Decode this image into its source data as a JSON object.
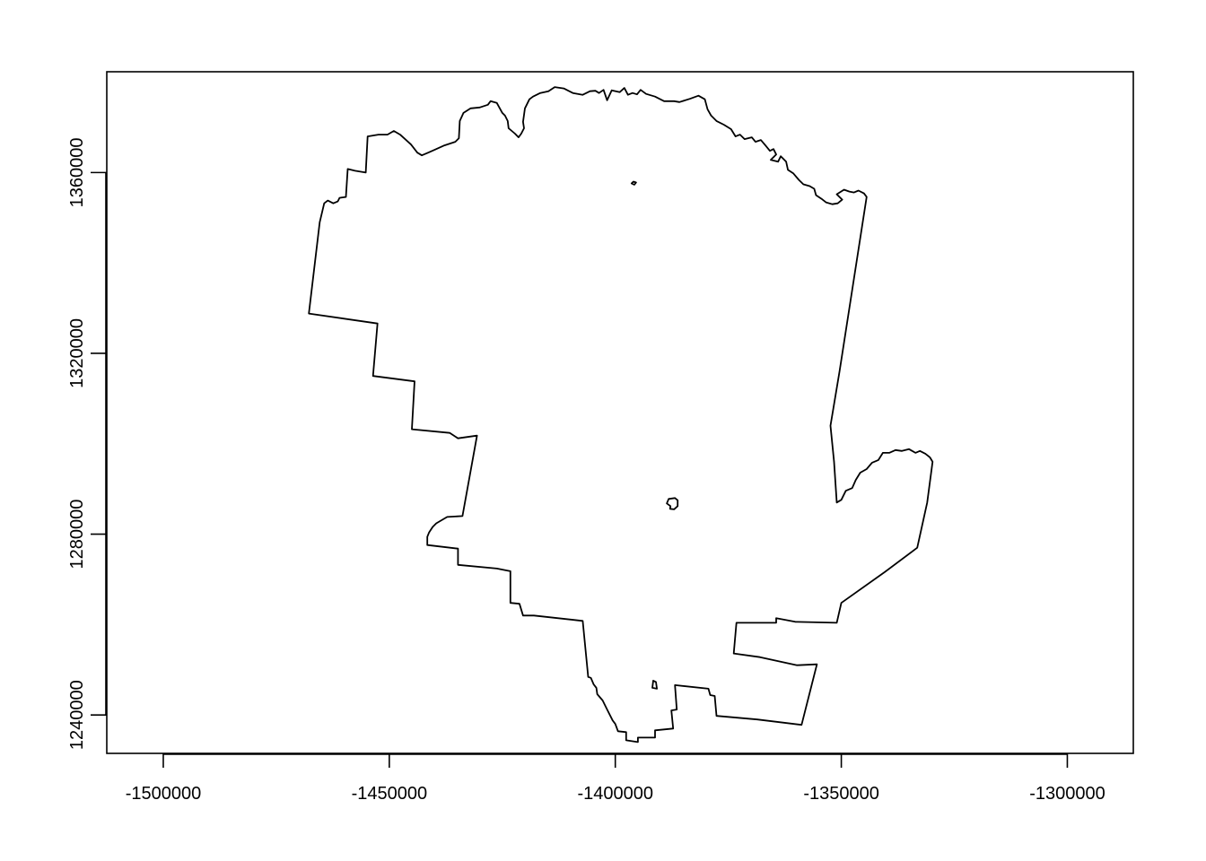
{
  "chart_data": {
    "type": "map",
    "title": "",
    "xlabel": "",
    "ylabel": "",
    "x_ticks": [
      -1500000,
      -1450000,
      -1400000,
      -1350000,
      -1300000
    ],
    "x_tick_labels": [
      "-1500000",
      "-1450000",
      "-1400000",
      "-1350000",
      "-1300000"
    ],
    "y_ticks": [
      1240000,
      1280000,
      1320000,
      1360000
    ],
    "y_tick_labels": [
      "1240000",
      "1280000",
      "1320000",
      "1360000"
    ],
    "xlim": [
      -1512500,
      -1285400
    ],
    "ylim": [
      1231500,
      1382300
    ],
    "grid": false,
    "stroke_color": "#000000",
    "outline": [
      [
        -1413400,
        1378900
      ],
      [
        -1411400,
        1378600
      ],
      [
        -1409400,
        1377600
      ],
      [
        -1407200,
        1377200
      ],
      [
        -1405600,
        1378000
      ],
      [
        -1404400,
        1378100
      ],
      [
        -1403600,
        1377600
      ],
      [
        -1402600,
        1378300
      ],
      [
        -1401800,
        1376000
      ],
      [
        -1400800,
        1378200
      ],
      [
        -1399000,
        1377800
      ],
      [
        -1398000,
        1378700
      ],
      [
        -1397200,
        1377200
      ],
      [
        -1396200,
        1377600
      ],
      [
        -1395200,
        1377300
      ],
      [
        -1394400,
        1378300
      ],
      [
        -1393200,
        1377400
      ],
      [
        -1391200,
        1376800
      ],
      [
        -1389200,
        1375800
      ],
      [
        -1387000,
        1375800
      ],
      [
        -1385800,
        1375600
      ],
      [
        -1383500,
        1376300
      ],
      [
        -1381600,
        1377000
      ],
      [
        -1380200,
        1376200
      ],
      [
        -1379600,
        1374000
      ],
      [
        -1378800,
        1372600
      ],
      [
        -1377600,
        1371400
      ],
      [
        -1376000,
        1370600
      ],
      [
        -1374400,
        1369600
      ],
      [
        -1373400,
        1368000
      ],
      [
        -1372400,
        1368400
      ],
      [
        -1371400,
        1367400
      ],
      [
        -1369800,
        1367800
      ],
      [
        -1369000,
        1366800
      ],
      [
        -1367800,
        1367200
      ],
      [
        -1366800,
        1366000
      ],
      [
        -1365800,
        1364800
      ],
      [
        -1365000,
        1365200
      ],
      [
        -1364400,
        1364000
      ],
      [
        -1365600,
        1362800
      ],
      [
        -1364000,
        1362400
      ],
      [
        -1363400,
        1363600
      ],
      [
        -1362200,
        1362400
      ],
      [
        -1361800,
        1360600
      ],
      [
        -1360600,
        1359800
      ],
      [
        -1359400,
        1358400
      ],
      [
        -1358400,
        1357400
      ],
      [
        -1357000,
        1357000
      ],
      [
        -1356000,
        1356400
      ],
      [
        -1355600,
        1355000
      ],
      [
        -1354400,
        1354200
      ],
      [
        -1353400,
        1353400
      ],
      [
        -1352000,
        1353000
      ],
      [
        -1350800,
        1353200
      ],
      [
        -1349800,
        1354000
      ],
      [
        -1351000,
        1355200
      ],
      [
        -1349400,
        1356200
      ],
      [
        -1348200,
        1355800
      ],
      [
        -1347200,
        1355600
      ],
      [
        -1346200,
        1356000
      ],
      [
        -1345000,
        1355400
      ],
      [
        -1344400,
        1354600
      ],
      [
        -1347600,
        1334000
      ],
      [
        -1350400,
        1316000
      ],
      [
        -1352400,
        1304000
      ],
      [
        -1351600,
        1296000
      ],
      [
        -1351000,
        1287000
      ],
      [
        -1350000,
        1287600
      ],
      [
        -1349000,
        1289600
      ],
      [
        -1347600,
        1290200
      ],
      [
        -1346800,
        1292000
      ],
      [
        -1345800,
        1293600
      ],
      [
        -1344400,
        1294400
      ],
      [
        -1343200,
        1295800
      ],
      [
        -1341800,
        1296400
      ],
      [
        -1340800,
        1298000
      ],
      [
        -1339400,
        1298000
      ],
      [
        -1338000,
        1298600
      ],
      [
        -1336600,
        1298400
      ],
      [
        -1335000,
        1298800
      ],
      [
        -1333600,
        1298000
      ],
      [
        -1332600,
        1298400
      ],
      [
        -1331400,
        1297800
      ],
      [
        -1330400,
        1297000
      ],
      [
        -1329800,
        1296000
      ],
      [
        -1331000,
        1287000
      ],
      [
        -1333200,
        1277000
      ],
      [
        -1340400,
        1271600
      ],
      [
        -1350000,
        1264800
      ],
      [
        -1351000,
        1260400
      ],
      [
        -1360200,
        1260600
      ],
      [
        -1364400,
        1261400
      ],
      [
        -1364400,
        1260400
      ],
      [
        -1369000,
        1260400
      ],
      [
        -1373200,
        1260400
      ],
      [
        -1373800,
        1253600
      ],
      [
        -1368000,
        1252800
      ],
      [
        -1359800,
        1251000
      ],
      [
        -1355400,
        1251200
      ],
      [
        -1358800,
        1237800
      ],
      [
        -1368600,
        1239000
      ],
      [
        -1377600,
        1239800
      ],
      [
        -1378000,
        1244200
      ],
      [
        -1379000,
        1244400
      ],
      [
        -1379400,
        1245800
      ],
      [
        -1386800,
        1246600
      ],
      [
        -1386400,
        1241200
      ],
      [
        -1387600,
        1241000
      ],
      [
        -1387200,
        1237000
      ],
      [
        -1391200,
        1236600
      ],
      [
        -1391200,
        1235000
      ],
      [
        -1395000,
        1235000
      ],
      [
        -1395000,
        1234000
      ],
      [
        -1397600,
        1234400
      ],
      [
        -1397600,
        1236200
      ],
      [
        -1399400,
        1236400
      ],
      [
        -1400000,
        1238000
      ],
      [
        -1400600,
        1238800
      ],
      [
        -1401800,
        1241200
      ],
      [
        -1402800,
        1243200
      ],
      [
        -1404000,
        1244600
      ],
      [
        -1404200,
        1246000
      ],
      [
        -1404800,
        1246800
      ],
      [
        -1405400,
        1248200
      ],
      [
        -1406000,
        1248400
      ],
      [
        -1407200,
        1260800
      ],
      [
        -1418000,
        1262000
      ],
      [
        -1420400,
        1262000
      ],
      [
        -1421200,
        1264600
      ],
      [
        -1423200,
        1264800
      ],
      [
        -1423200,
        1271800
      ],
      [
        -1426200,
        1272400
      ],
      [
        -1434800,
        1273200
      ],
      [
        -1434800,
        1276800
      ],
      [
        -1441600,
        1277600
      ],
      [
        -1441600,
        1279400
      ],
      [
        -1441200,
        1280400
      ],
      [
        -1440400,
        1281600
      ],
      [
        -1439600,
        1282400
      ],
      [
        -1437200,
        1283800
      ],
      [
        -1433800,
        1284000
      ],
      [
        -1430600,
        1301800
      ],
      [
        -1434800,
        1301200
      ],
      [
        -1436600,
        1302400
      ],
      [
        -1445000,
        1303200
      ],
      [
        -1444400,
        1313800
      ],
      [
        -1453600,
        1315000
      ],
      [
        -1452600,
        1326600
      ],
      [
        -1467800,
        1328800
      ],
      [
        -1465400,
        1349000
      ],
      [
        -1464400,
        1353200
      ],
      [
        -1463600,
        1353800
      ],
      [
        -1462400,
        1353200
      ],
      [
        -1461400,
        1353600
      ],
      [
        -1461000,
        1354400
      ],
      [
        -1459600,
        1354600
      ],
      [
        -1459200,
        1360800
      ],
      [
        -1457600,
        1360400
      ],
      [
        -1455200,
        1360000
      ],
      [
        -1454800,
        1368000
      ],
      [
        -1452400,
        1368400
      ],
      [
        -1450400,
        1368400
      ],
      [
        -1449000,
        1369200
      ],
      [
        -1447600,
        1368400
      ],
      [
        -1445200,
        1366200
      ],
      [
        -1443800,
        1364400
      ],
      [
        -1442800,
        1363800
      ],
      [
        -1441400,
        1364400
      ],
      [
        -1439600,
        1365200
      ],
      [
        -1437800,
        1366000
      ],
      [
        -1435400,
        1366800
      ],
      [
        -1434600,
        1367600
      ],
      [
        -1434400,
        1371400
      ],
      [
        -1433600,
        1373200
      ],
      [
        -1432000,
        1374200
      ],
      [
        -1430000,
        1374400
      ],
      [
        -1428200,
        1375000
      ],
      [
        -1427600,
        1375800
      ],
      [
        -1426200,
        1375400
      ],
      [
        -1425000,
        1373200
      ],
      [
        -1424400,
        1372600
      ],
      [
        -1423800,
        1371400
      ],
      [
        -1423600,
        1369800
      ],
      [
        -1422200,
        1368600
      ],
      [
        -1421400,
        1367800
      ],
      [
        -1420800,
        1368600
      ],
      [
        -1420200,
        1369800
      ],
      [
        -1420400,
        1371200
      ],
      [
        -1420000,
        1374200
      ],
      [
        -1419000,
        1376200
      ],
      [
        -1418200,
        1376800
      ],
      [
        -1416600,
        1377600
      ],
      [
        -1414800,
        1378000
      ],
      [
        -1413400,
        1378900
      ]
    ],
    "holes": [
      [
        [
          -1395400,
          1357800
        ],
        [
          -1396000,
          1358000
        ],
        [
          -1396400,
          1357600
        ],
        [
          -1395800,
          1357300
        ],
        [
          -1395400,
          1357800
        ]
      ],
      [
        [
          -1387000,
          1285500
        ],
        [
          -1386200,
          1286200
        ],
        [
          -1386200,
          1287500
        ],
        [
          -1386800,
          1288000
        ],
        [
          -1388200,
          1287800
        ],
        [
          -1388600,
          1286800
        ],
        [
          -1387800,
          1286200
        ],
        [
          -1387900,
          1285600
        ],
        [
          -1387000,
          1285500
        ]
      ],
      [
        [
          -1390800,
          1245800
        ],
        [
          -1391000,
          1247300
        ],
        [
          -1391600,
          1247600
        ],
        [
          -1391800,
          1246000
        ],
        [
          -1390800,
          1245800
        ]
      ]
    ]
  }
}
